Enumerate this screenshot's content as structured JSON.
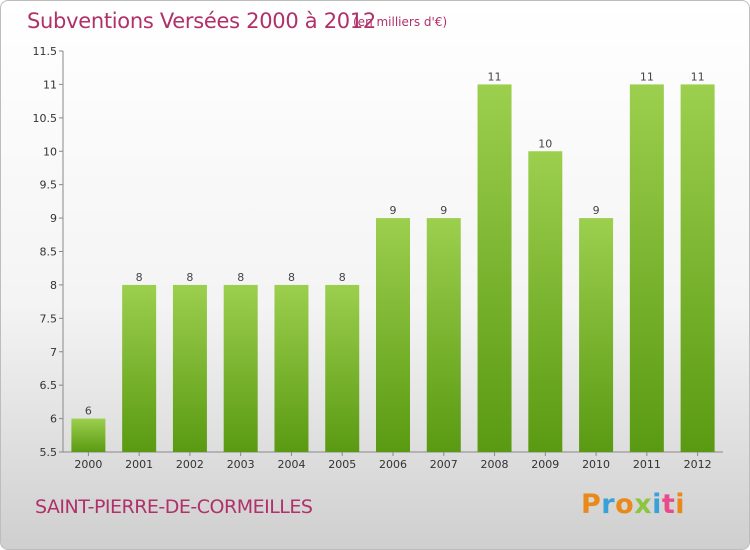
{
  "header": {
    "title": "Subventions Versées 2000 à 2012",
    "subtitle": "(en milliers d'€)"
  },
  "footer": {
    "commune": "SAINT-PIERRE-DE-CORMEILLES",
    "logo": "Proxiti",
    "logo_colors": [
      "#e9891a",
      "#3aa0d8",
      "#e9891a",
      "#8cc63f",
      "#3aa0d8",
      "#e94b8a",
      "#e9891a"
    ]
  },
  "colors": {
    "bar_top": "#9ccf4e",
    "bar_bottom": "#5a9a12",
    "text_accent": "#b0306a"
  },
  "chart_data": {
    "type": "bar",
    "title": "Subventions Versées 2000 à 2012",
    "subtitle": "(en milliers d'€)",
    "categories": [
      "2000",
      "2001",
      "2002",
      "2003",
      "2004",
      "2005",
      "2006",
      "2007",
      "2008",
      "2009",
      "2010",
      "2011",
      "2012"
    ],
    "values": [
      6,
      8,
      8,
      8,
      8,
      8,
      9,
      9,
      11,
      10,
      9,
      11,
      11
    ],
    "ylim": [
      5.5,
      11.5
    ],
    "yticks": [
      "5.5",
      "6",
      "6.5",
      "7",
      "7.5",
      "8",
      "8.5",
      "9",
      "9.5",
      "10",
      "10.5",
      "11",
      "11.5"
    ],
    "grid": false,
    "legend": "none"
  }
}
